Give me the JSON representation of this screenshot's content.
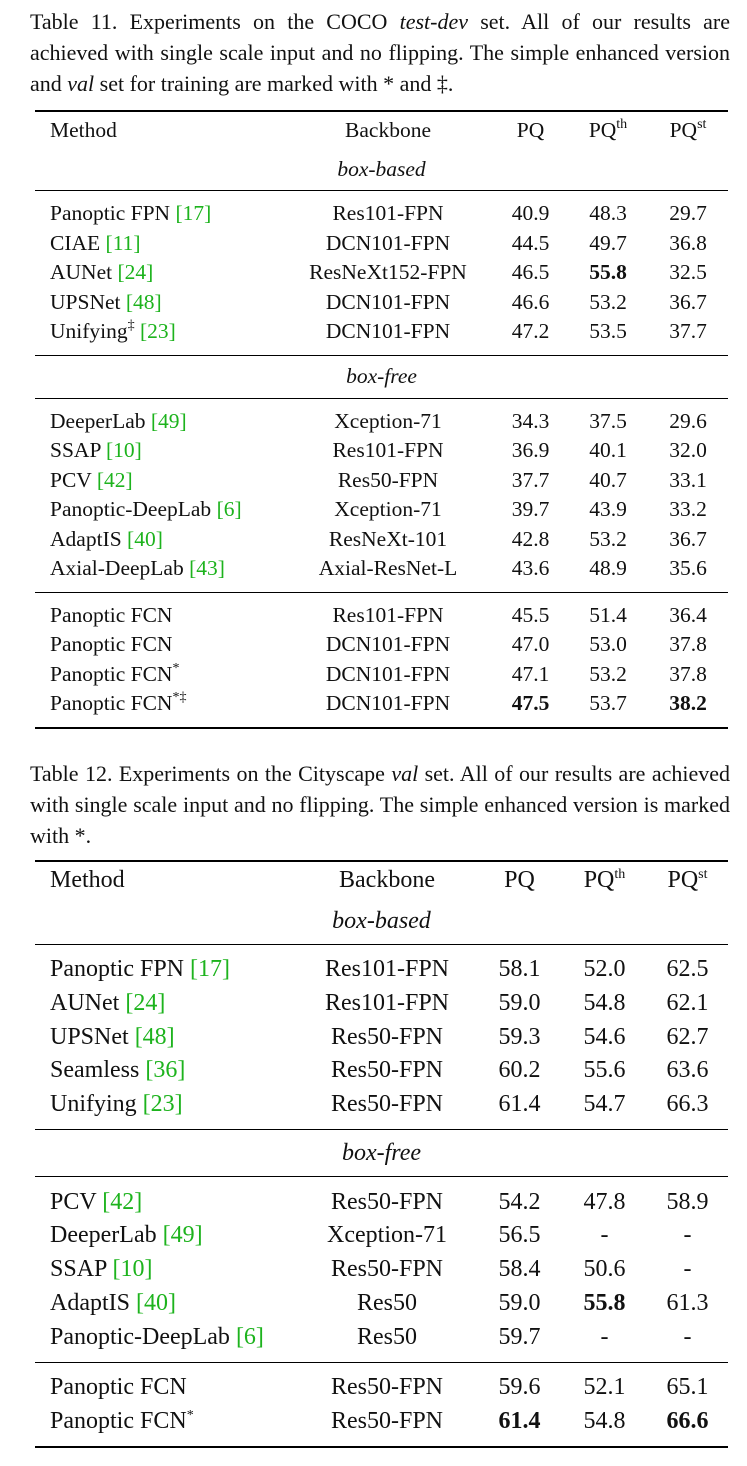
{
  "table11": {
    "caption": {
      "prefix": "Table 11. Experiments on the COCO ",
      "set": "test-dev",
      "mid": " set. All of our results are achieved with single scale input and no flipping. The simple enhanced version and ",
      "val": "val",
      "suffix": " set for training are marked with * and ‡."
    },
    "headers": {
      "method": "Method",
      "backbone": "Backbone",
      "pq": "PQ",
      "pqth": "PQ",
      "pqth_sup": "th",
      "pqst": "PQ",
      "pqst_sup": "st"
    },
    "sections": {
      "box_based": "box-based",
      "box_free": "box-free"
    },
    "rows": {
      "r1": {
        "name": "Panoptic FPN ",
        "cite": "[17]",
        "backbone": "Res101-FPN",
        "pq": "40.9",
        "pqth": "48.3",
        "pqst": "29.7"
      },
      "r2": {
        "name": "CIAE ",
        "cite": "[11]",
        "backbone": "DCN101-FPN",
        "pq": "44.5",
        "pqth": "49.7",
        "pqst": "36.8"
      },
      "r3": {
        "name": "AUNet ",
        "cite": "[24]",
        "backbone": "ResNeXt152-FPN",
        "pq": "46.5",
        "pqth": "55.8",
        "pqst": "32.5"
      },
      "r4": {
        "name": "UPSNet ",
        "cite": "[48]",
        "backbone": "DCN101-FPN",
        "pq": "46.6",
        "pqth": "53.2",
        "pqst": "36.7"
      },
      "r5": {
        "name": "Unifying",
        "sup": "‡",
        "cite": "[23]",
        "backbone": "DCN101-FPN",
        "pq": "47.2",
        "pqth": "53.5",
        "pqst": "37.7"
      },
      "r6": {
        "name": "DeeperLab ",
        "cite": "[49]",
        "backbone": "Xception-71",
        "pq": "34.3",
        "pqth": "37.5",
        "pqst": "29.6"
      },
      "r7": {
        "name": "SSAP ",
        "cite": "[10]",
        "backbone": "Res101-FPN",
        "pq": "36.9",
        "pqth": "40.1",
        "pqst": "32.0"
      },
      "r8": {
        "name": "PCV ",
        "cite": "[42]",
        "backbone": "Res50-FPN",
        "pq": "37.7",
        "pqth": "40.7",
        "pqst": "33.1"
      },
      "r9": {
        "name": "Panoptic-DeepLab ",
        "cite": "[6]",
        "backbone": "Xception-71",
        "pq": "39.7",
        "pqth": "43.9",
        "pqst": "33.2"
      },
      "r10": {
        "name": "AdaptIS ",
        "cite": "[40]",
        "backbone": "ResNeXt-101",
        "pq": "42.8",
        "pqth": "53.2",
        "pqst": "36.7"
      },
      "r11": {
        "name": "Axial-DeepLab ",
        "cite": "[43]",
        "backbone": "Axial-ResNet-L",
        "pq": "43.6",
        "pqth": "48.9",
        "pqst": "35.6"
      },
      "r12": {
        "name": "Panoptic FCN",
        "backbone": "Res101-FPN",
        "pq": "45.5",
        "pqth": "51.4",
        "pqst": "36.4"
      },
      "r13": {
        "name": "Panoptic FCN",
        "backbone": "DCN101-FPN",
        "pq": "47.0",
        "pqth": "53.0",
        "pqst": "37.8"
      },
      "r14": {
        "name": "Panoptic FCN",
        "sup": "*",
        "backbone": "DCN101-FPN",
        "pq": "47.1",
        "pqth": "53.2",
        "pqst": "37.8"
      },
      "r15": {
        "name": "Panoptic FCN",
        "sup": "*‡",
        "backbone": "DCN101-FPN",
        "pq": "47.5",
        "pqth": "53.7",
        "pqst": "38.2"
      }
    }
  },
  "table12": {
    "caption": {
      "prefix": "Table 12. Experiments on the Cityscape ",
      "set": "val",
      "suffix": " set. All of our results are achieved with single scale input and no flipping. The simple enhanced version is marked with *."
    },
    "headers": {
      "method": "Method",
      "backbone": "Backbone",
      "pq": "PQ",
      "pqth": "PQ",
      "pqth_sup": "th",
      "pqst": "PQ",
      "pqst_sup": "st"
    },
    "sections": {
      "box_based": "box-based",
      "box_free": "box-free"
    },
    "rows": {
      "r1": {
        "name": "Panoptic FPN ",
        "cite": "[17]",
        "backbone": "Res101-FPN",
        "pq": "58.1",
        "pqth": "52.0",
        "pqst": "62.5"
      },
      "r2": {
        "name": "AUNet ",
        "cite": "[24]",
        "backbone": "Res101-FPN",
        "pq": "59.0",
        "pqth": "54.8",
        "pqst": "62.1"
      },
      "r3": {
        "name": "UPSNet ",
        "cite": "[48]",
        "backbone": "Res50-FPN",
        "pq": "59.3",
        "pqth": "54.6",
        "pqst": "62.7"
      },
      "r4": {
        "name": "Seamless ",
        "cite": "[36]",
        "backbone": "Res50-FPN",
        "pq": "60.2",
        "pqth": "55.6",
        "pqst": "63.6"
      },
      "r5": {
        "name": "Unifying ",
        "cite": "[23]",
        "backbone": "Res50-FPN",
        "pq": "61.4",
        "pqth": "54.7",
        "pqst": "66.3"
      },
      "r6": {
        "name": "PCV ",
        "cite": "[42]",
        "backbone": "Res50-FPN",
        "pq": "54.2",
        "pqth": "47.8",
        "pqst": "58.9"
      },
      "r7": {
        "name": "DeeperLab ",
        "cite": "[49]",
        "backbone": "Xception-71",
        "pq": "56.5",
        "pqth": "-",
        "pqst": "-"
      },
      "r8": {
        "name": "SSAP ",
        "cite": "[10]",
        "backbone": "Res50-FPN",
        "pq": "58.4",
        "pqth": "50.6",
        "pqst": "-"
      },
      "r9": {
        "name": "AdaptIS ",
        "cite": "[40]",
        "backbone": "Res50",
        "pq": "59.0",
        "pqth": "55.8",
        "pqst": "61.3"
      },
      "r10": {
        "name": "Panoptic-DeepLab ",
        "cite": "[6]",
        "backbone": "Res50",
        "pq": "59.7",
        "pqth": "-",
        "pqst": "-"
      },
      "r11": {
        "name": "Panoptic FCN",
        "backbone": "Res50-FPN",
        "pq": "59.6",
        "pqth": "52.1",
        "pqst": "65.1"
      },
      "r12": {
        "name": "Panoptic FCN",
        "sup": "*",
        "backbone": "Res50-FPN",
        "pq": "61.4",
        "pqth": "54.8",
        "pqst": "66.6"
      }
    }
  }
}
